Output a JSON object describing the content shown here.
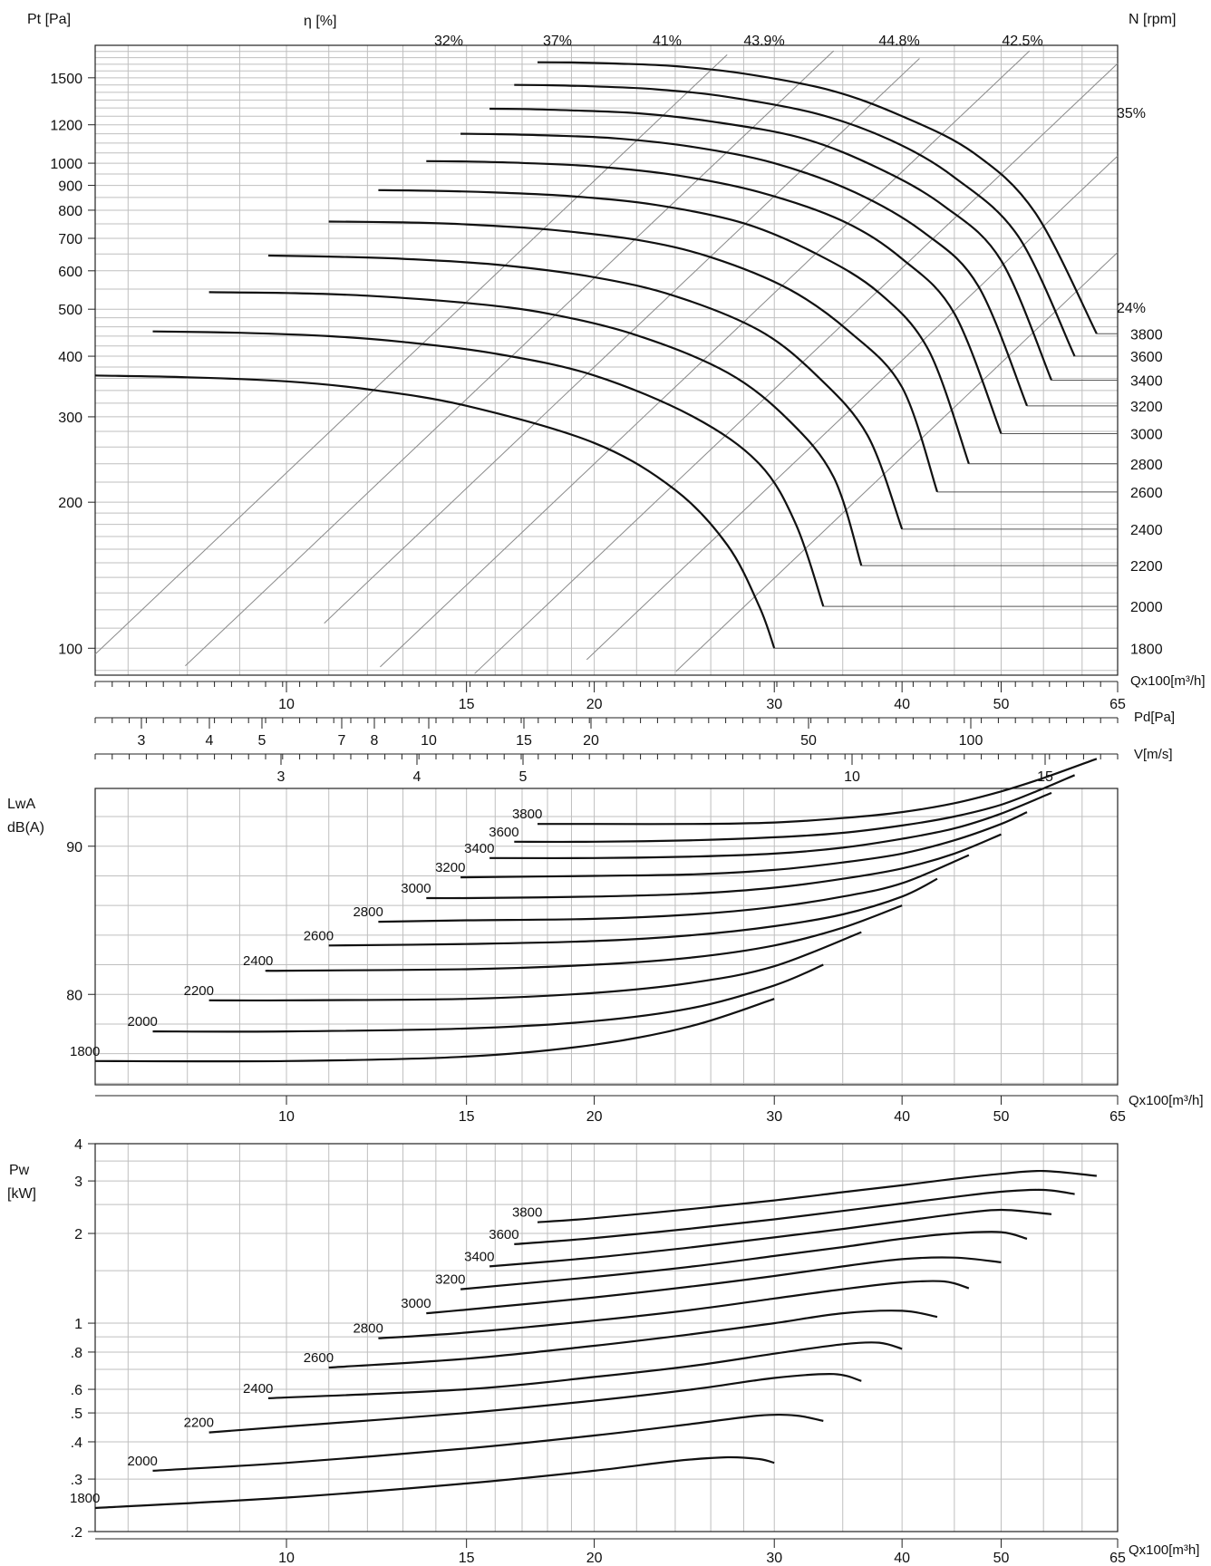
{
  "colors": {
    "curve": "#111111",
    "grid": "#bfbfbf",
    "efficiency_line": "#8a8a8a",
    "background": "#ffffff"
  },
  "chart_data": [
    {
      "type": "line",
      "panel": "pressure",
      "y_label": "Pt [Pa]",
      "eta_label": "η [%]",
      "n_label": "N [rpm]",
      "x_scale": "log",
      "y_scale": "log",
      "xlim": [
        6.5,
        65
      ],
      "ylim": [
        88,
        1750
      ],
      "y_ticks": [
        100,
        200,
        300,
        400,
        500,
        600,
        700,
        800,
        900,
        1000,
        1200,
        1500
      ],
      "efficiency_labels": [
        "32%",
        "37%",
        "41%",
        "43.9%",
        "44.8%",
        "42.5%",
        "35%",
        "24%"
      ],
      "series": [
        {
          "name": "1800",
          "x": [
            6.5,
            8,
            10,
            12,
            15,
            20,
            24,
            27,
            29,
            30
          ],
          "y": [
            365,
            362,
            355,
            342,
            316,
            265,
            212,
            163,
            122,
            100
          ]
        },
        {
          "name": "2000",
          "x": [
            7.4,
            9,
            11,
            13,
            16,
            20,
            25,
            29,
            31.5,
            33.5
          ],
          "y": [
            450,
            447,
            440,
            428,
            405,
            365,
            300,
            240,
            180,
            122
          ]
        },
        {
          "name": "2200",
          "x": [
            8.4,
            10,
            12,
            15,
            18,
            22,
            27,
            31,
            34.3,
            36.5
          ],
          "y": [
            542,
            540,
            533,
            515,
            490,
            442,
            370,
            295,
            225,
            148
          ]
        },
        {
          "name": "2400",
          "x": [
            9.6,
            11,
            13,
            16,
            20,
            24,
            29,
            33,
            37,
            40
          ],
          "y": [
            645,
            642,
            635,
            618,
            582,
            532,
            452,
            365,
            275,
            176
          ]
        },
        {
          "name": "2600",
          "x": [
            11,
            13,
            15,
            18,
            22,
            26,
            31,
            35.5,
            40,
            43.3
          ],
          "y": [
            758,
            755,
            748,
            730,
            695,
            640,
            550,
            450,
            345,
            210
          ]
        },
        {
          "name": "2800",
          "x": [
            12.3,
            14,
            16,
            19,
            23,
            28,
            33,
            38,
            42.5,
            46.5
          ],
          "y": [
            880,
            877,
            870,
            855,
            820,
            752,
            650,
            540,
            410,
            240
          ]
        },
        {
          "name": "3000",
          "x": [
            13.7,
            15,
            17,
            20,
            24,
            29,
            35,
            40,
            45,
            50
          ],
          "y": [
            1010,
            1008,
            1001,
            985,
            945,
            872,
            760,
            635,
            490,
            277
          ]
        },
        {
          "name": "3200",
          "x": [
            14.8,
            16,
            18,
            21,
            25,
            30,
            36,
            42,
            47.5,
            53
          ],
          "y": [
            1150,
            1148,
            1141,
            1125,
            1080,
            1000,
            870,
            720,
            558,
            316
          ]
        },
        {
          "name": "3400",
          "x": [
            15.8,
            17,
            19,
            22,
            26,
            32,
            38,
            44,
            50,
            56
          ],
          "y": [
            1295,
            1293,
            1285,
            1268,
            1220,
            1125,
            975,
            815,
            630,
            357
          ]
        },
        {
          "name": "3600",
          "x": [
            16.7,
            18,
            20,
            23,
            27,
            33,
            39,
            45,
            52,
            59
          ],
          "y": [
            1450,
            1448,
            1440,
            1420,
            1370,
            1265,
            1115,
            935,
            705,
            400
          ]
        },
        {
          "name": "3800",
          "x": [
            17.6,
            19,
            21,
            24,
            28,
            34,
            40,
            47,
            54,
            62
          ],
          "y": [
            1615,
            1613,
            1605,
            1585,
            1530,
            1415,
            1250,
            1050,
            790,
            445
          ]
        }
      ]
    },
    {
      "type": "line",
      "panel": "sound",
      "y_label": [
        "LwA",
        "dB(A)"
      ],
      "xlabel": "Qx100[m³/h]",
      "ylim": [
        75,
        95
      ],
      "y_ticks": [
        80,
        90
      ],
      "series": [
        {
          "name": "1800",
          "x": [
            6.5,
            10,
            15,
            20,
            25,
            30
          ],
          "y": [
            75.5,
            75.5,
            75.8,
            76.6,
            77.9,
            79.7
          ]
        },
        {
          "name": "2000",
          "x": [
            7.4,
            10,
            15,
            20,
            25,
            30,
            33.5
          ],
          "y": [
            77.5,
            77.5,
            77.7,
            78.2,
            79.1,
            80.6,
            82.0
          ]
        },
        {
          "name": "2200",
          "x": [
            8.4,
            10,
            15,
            20,
            25,
            30,
            36.5
          ],
          "y": [
            79.6,
            79.6,
            79.7,
            80.1,
            80.8,
            81.9,
            84.2
          ]
        },
        {
          "name": "2400",
          "x": [
            9.6,
            10,
            15,
            20,
            25,
            30,
            35,
            40
          ],
          "y": [
            81.6,
            81.6,
            81.7,
            82.0,
            82.5,
            83.3,
            84.5,
            86.0
          ]
        },
        {
          "name": "2600",
          "x": [
            11,
            15,
            20,
            25,
            30,
            35,
            40,
            43.3
          ],
          "y": [
            83.3,
            83.4,
            83.6,
            84.0,
            84.6,
            85.4,
            86.6,
            87.8
          ]
        },
        {
          "name": "2800",
          "x": [
            12.3,
            15,
            20,
            25,
            30,
            35,
            40,
            46.5
          ],
          "y": [
            84.9,
            85.0,
            85.1,
            85.4,
            85.9,
            86.6,
            87.5,
            89.4
          ]
        },
        {
          "name": "3000",
          "x": [
            13.7,
            15,
            20,
            25,
            30,
            35,
            40,
            45,
            50
          ],
          "y": [
            86.5,
            86.5,
            86.6,
            86.8,
            87.2,
            87.8,
            88.5,
            89.5,
            90.8
          ]
        },
        {
          "name": "3200",
          "x": [
            14.8,
            20,
            25,
            30,
            35,
            40,
            45,
            50,
            53
          ],
          "y": [
            87.9,
            88.0,
            88.1,
            88.4,
            88.9,
            89.5,
            90.4,
            91.5,
            92.3
          ]
        },
        {
          "name": "3400",
          "x": [
            15.8,
            20,
            25,
            30,
            35,
            40,
            45,
            50,
            56
          ],
          "y": [
            89.2,
            89.2,
            89.3,
            89.5,
            89.9,
            90.5,
            91.2,
            92.2,
            93.6
          ]
        },
        {
          "name": "3600",
          "x": [
            16.7,
            20,
            25,
            30,
            35,
            40,
            45,
            50,
            55,
            59
          ],
          "y": [
            90.3,
            90.3,
            90.4,
            90.6,
            90.9,
            91.4,
            92.0,
            92.8,
            93.9,
            94.8
          ]
        },
        {
          "name": "3800",
          "x": [
            17.6,
            20,
            25,
            30,
            35,
            40,
            45,
            50,
            55,
            62
          ],
          "y": [
            91.5,
            91.5,
            91.5,
            91.6,
            91.9,
            92.3,
            92.9,
            93.7,
            94.6,
            95.9
          ]
        }
      ]
    },
    {
      "type": "line",
      "panel": "power",
      "y_label": [
        "Pw",
        "[kW]"
      ],
      "xlabel": "Qx100[m³h]",
      "y_scale": "log",
      "ylim": [
        0.2,
        4
      ],
      "y_ticks": [
        ".2",
        ".3",
        ".4",
        ".5",
        ".6",
        ".8",
        "1",
        "2",
        "3",
        "4"
      ],
      "series": [
        {
          "name": "1800",
          "x": [
            6.5,
            10,
            15,
            20,
            24,
            27,
            29,
            30
          ],
          "y": [
            0.24,
            0.26,
            0.29,
            0.32,
            0.345,
            0.355,
            0.35,
            0.34
          ]
        },
        {
          "name": "2000",
          "x": [
            7.4,
            10,
            15,
            20,
            25,
            29,
            31.5,
            33.5
          ],
          "y": [
            0.32,
            0.34,
            0.38,
            0.42,
            0.46,
            0.49,
            0.49,
            0.47
          ]
        },
        {
          "name": "2200",
          "x": [
            8.4,
            10,
            15,
            20,
            25,
            30,
            34.3,
            36.5
          ],
          "y": [
            0.43,
            0.45,
            0.5,
            0.55,
            0.6,
            0.655,
            0.675,
            0.64
          ]
        },
        {
          "name": "2400",
          "x": [
            9.6,
            15,
            20,
            25,
            30,
            35,
            38,
            40
          ],
          "y": [
            0.56,
            0.6,
            0.66,
            0.72,
            0.79,
            0.85,
            0.86,
            0.82
          ]
        },
        {
          "name": "2600",
          "x": [
            11,
            15,
            20,
            25,
            30,
            35,
            40,
            43.3
          ],
          "y": [
            0.71,
            0.76,
            0.84,
            0.92,
            1.0,
            1.08,
            1.1,
            1.05
          ]
        },
        {
          "name": "2800",
          "x": [
            12.3,
            15,
            20,
            25,
            30,
            35,
            40,
            44,
            46.5
          ],
          "y": [
            0.89,
            0.93,
            1.02,
            1.11,
            1.21,
            1.3,
            1.37,
            1.38,
            1.31
          ]
        },
        {
          "name": "3000",
          "x": [
            13.7,
            15,
            20,
            25,
            30,
            35,
            40,
            45,
            50
          ],
          "y": [
            1.08,
            1.11,
            1.22,
            1.33,
            1.44,
            1.55,
            1.64,
            1.66,
            1.6
          ]
        },
        {
          "name": "3200",
          "x": [
            14.8,
            20,
            25,
            30,
            35,
            40,
            45,
            50,
            53
          ],
          "y": [
            1.3,
            1.43,
            1.55,
            1.68,
            1.8,
            1.92,
            2.0,
            2.02,
            1.92
          ]
        },
        {
          "name": "3400",
          "x": [
            15.8,
            20,
            25,
            30,
            35,
            40,
            45,
            50,
            56
          ],
          "y": [
            1.55,
            1.66,
            1.8,
            1.94,
            2.07,
            2.2,
            2.32,
            2.4,
            2.32
          ]
        },
        {
          "name": "3600",
          "x": [
            16.7,
            20,
            25,
            30,
            35,
            40,
            45,
            50,
            55,
            59
          ],
          "y": [
            1.84,
            1.93,
            2.08,
            2.23,
            2.38,
            2.52,
            2.65,
            2.76,
            2.8,
            2.71
          ]
        },
        {
          "name": "3800",
          "x": [
            17.6,
            20,
            25,
            30,
            35,
            40,
            45,
            50,
            55,
            62
          ],
          "y": [
            2.18,
            2.25,
            2.42,
            2.58,
            2.75,
            2.9,
            3.05,
            3.17,
            3.24,
            3.12
          ]
        }
      ]
    }
  ],
  "axes": {
    "q_label": "Qx100[m³/h]",
    "q_ticks": [
      "10",
      "15",
      "20",
      "30",
      "40",
      "50",
      "65"
    ],
    "pd_label": "Pd[Pa]",
    "pd_ticks": [
      "3",
      "4",
      "5",
      "7",
      "8",
      "10",
      "15",
      "20",
      "50",
      "100"
    ],
    "v_label": "V[m/s]",
    "v_ticks": [
      "3",
      "4",
      "5",
      "10",
      "15"
    ]
  }
}
